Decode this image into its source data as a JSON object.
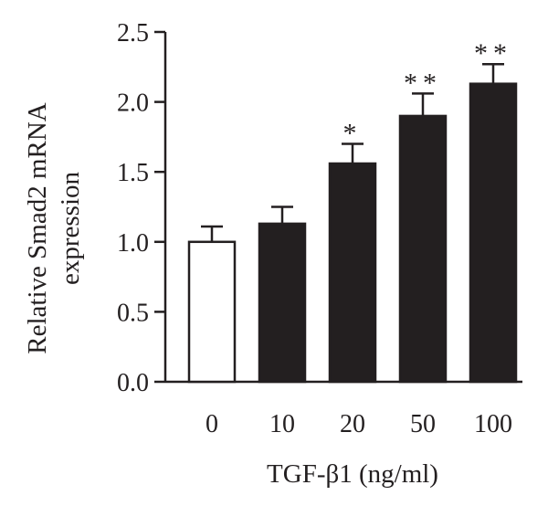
{
  "chart_data": {
    "type": "bar",
    "categories": [
      "0",
      "10",
      "20",
      "50",
      "100"
    ],
    "values": [
      1.0,
      1.13,
      1.56,
      1.9,
      2.13
    ],
    "errors": [
      0.11,
      0.12,
      0.14,
      0.16,
      0.14
    ],
    "significance": [
      "",
      "",
      "*",
      "**",
      "**"
    ],
    "bar_colors": [
      "#ffffff",
      "#231f20",
      "#231f20",
      "#231f20",
      "#231f20"
    ],
    "ylim": [
      0,
      2.5
    ],
    "yticks": [
      "0.0",
      "0.5",
      "1.0",
      "1.5",
      "2.0",
      "2.5"
    ],
    "ylabel_line1": "Relative Smad2 mRNA",
    "ylabel_line2": "expression",
    "xlabel": "TGF-β1 (ng/ml)",
    "grid": false
  }
}
